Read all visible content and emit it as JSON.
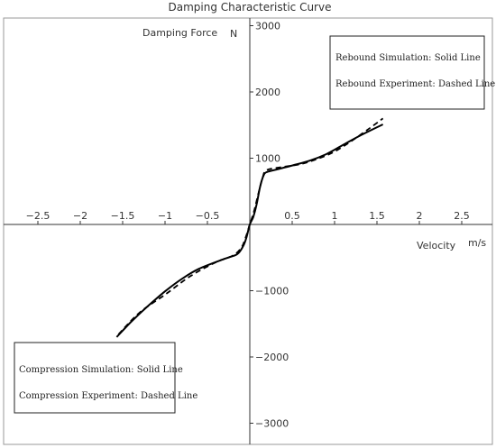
{
  "chart_data": {
    "type": "line",
    "title": "Damping Characteristic Curve",
    "xlabel": "Velocity",
    "xunit": "m/s",
    "ylabel": "Damping Force",
    "yunit": "N",
    "xlim": [
      -2.7,
      2.9
    ],
    "ylim": [
      -3200,
      3100
    ],
    "x_ticks": [
      -2.5,
      -2,
      -1.5,
      -1,
      -0.5,
      0.5,
      1,
      1.5,
      2,
      2.5
    ],
    "x_tick_labels": [
      "−2.5",
      "−2",
      "−1.5",
      "−1",
      "−0.5",
      "0.5",
      "1",
      "1.5",
      "2",
      "2.5"
    ],
    "y_ticks": [
      3000,
      2000,
      1000,
      -1000,
      -2000,
      -3000
    ],
    "y_tick_labels": [
      "3000",
      "2000",
      "1000",
      "−1000",
      "−2000",
      "−3000"
    ],
    "grid": false,
    "series": [
      {
        "name": "Simulation",
        "style": "solid",
        "x": [
          -1.57,
          -1.4,
          -1.2,
          -1.0,
          -0.8,
          -0.6,
          -0.3,
          -0.15,
          -0.08,
          -0.04,
          0.0,
          0.04,
          0.08,
          0.12,
          0.16,
          0.2,
          0.35,
          0.5,
          0.7,
          0.9,
          1.1,
          1.3,
          1.57
        ],
        "y": [
          -1700,
          -1470,
          -1230,
          -1010,
          -820,
          -670,
          -520,
          -450,
          -330,
          -200,
          0,
          110,
          300,
          560,
          730,
          790,
          840,
          890,
          960,
          1060,
          1200,
          1340,
          1510
        ]
      },
      {
        "name": "Experiment",
        "style": "dashed",
        "x": [
          -1.55,
          -1.3,
          -1.0,
          -0.7,
          -0.4,
          -0.2,
          -0.1,
          -0.05,
          0.0,
          0.05,
          0.1,
          0.15,
          0.2,
          0.4,
          0.6,
          0.8,
          1.0,
          1.2,
          1.4,
          1.57
        ],
        "y": [
          -1660,
          -1330,
          -1060,
          -780,
          -570,
          -470,
          -350,
          -200,
          0,
          200,
          460,
          700,
          820,
          870,
          910,
          990,
          1100,
          1260,
          1440,
          1600
        ]
      }
    ],
    "legends": [
      {
        "position": "top-right",
        "lines": [
          "Rebound Simulation: Solid Line",
          "Rebound Experiment: Dashed Line"
        ]
      },
      {
        "position": "bottom-left",
        "lines": [
          "Compression Simulation: Solid Line",
          "Compression Experiment: Dashed Line"
        ]
      }
    ],
    "colors": {
      "line": "#000000",
      "axis": "#333333",
      "frame": "#999999"
    }
  }
}
